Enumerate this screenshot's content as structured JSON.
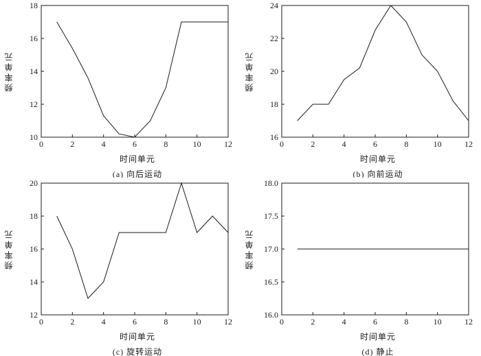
{
  "page": {
    "background": "#ffffff",
    "line_color": "#1a1a1a"
  },
  "chart_data": [
    {
      "id": "a",
      "type": "line",
      "title": "",
      "caption": "(a) 向后运动",
      "xlabel": "时间单元",
      "ylabel": "频率单元",
      "legend": "none",
      "grid": false,
      "xlim": [
        0,
        12
      ],
      "ylim": [
        10,
        18
      ],
      "xticks": [
        0,
        2,
        4,
        6,
        8,
        10,
        12
      ],
      "xtick_labels": [
        "0",
        "2",
        "4",
        "6",
        "8",
        "10",
        "12"
      ],
      "yticks": [
        10,
        12,
        14,
        16,
        18
      ],
      "ytick_labels": [
        "10",
        "12",
        "14",
        "16",
        "18"
      ],
      "x": [
        1,
        2,
        3,
        4,
        5,
        6,
        7,
        8,
        9,
        10,
        11,
        12
      ],
      "y": [
        17,
        15.4,
        13.6,
        11.3,
        10.2,
        10,
        11,
        13,
        17,
        17,
        17,
        17
      ]
    },
    {
      "id": "b",
      "type": "line",
      "title": "",
      "caption": "(b) 向前运动",
      "xlabel": "时间单元",
      "ylabel": "频率单元",
      "legend": "none",
      "grid": false,
      "xlim": [
        0,
        12
      ],
      "ylim": [
        16,
        24
      ],
      "xticks": [
        0,
        2,
        4,
        6,
        8,
        10,
        12
      ],
      "xtick_labels": [
        "0",
        "2",
        "4",
        "6",
        "8",
        "10",
        "12"
      ],
      "yticks": [
        16,
        18,
        20,
        22,
        24
      ],
      "ytick_labels": [
        "16",
        "18",
        "20",
        "22",
        "24"
      ],
      "x": [
        1,
        2,
        3,
        4,
        5,
        6,
        7,
        8,
        9,
        10,
        11,
        12
      ],
      "y": [
        17,
        18,
        18,
        19.5,
        20.2,
        22.5,
        24,
        23,
        21,
        20,
        18.2,
        17
      ]
    },
    {
      "id": "c",
      "type": "line",
      "title": "",
      "caption": "(c) 旋转运动",
      "xlabel": "时间单元",
      "ylabel": "频率单元",
      "legend": "none",
      "grid": false,
      "xlim": [
        0,
        12
      ],
      "ylim": [
        12,
        20
      ],
      "xticks": [
        0,
        2,
        4,
        6,
        8,
        10,
        12
      ],
      "xtick_labels": [
        "0",
        "2",
        "4",
        "6",
        "8",
        "10",
        "12"
      ],
      "yticks": [
        12,
        14,
        16,
        18,
        20
      ],
      "ytick_labels": [
        "12",
        "14",
        "16",
        "18",
        "20"
      ],
      "x": [
        1,
        2,
        3,
        4,
        5,
        6,
        7,
        8,
        9,
        10,
        11,
        12
      ],
      "y": [
        18,
        16,
        13,
        14,
        17,
        17,
        17,
        17,
        20,
        17,
        18,
        17
      ]
    },
    {
      "id": "d",
      "type": "line",
      "title": "",
      "caption": "(d) 静止",
      "xlabel": "时间单元",
      "ylabel": "频率单元",
      "legend": "none",
      "grid": false,
      "xlim": [
        0,
        12
      ],
      "ylim": [
        16,
        18
      ],
      "xticks": [
        0,
        2,
        4,
        6,
        8,
        10,
        12
      ],
      "xtick_labels": [
        "0",
        "2",
        "4",
        "6",
        "8",
        "10",
        "12"
      ],
      "yticks": [
        16,
        16.5,
        17,
        17.5,
        18
      ],
      "ytick_labels": [
        "16.0",
        "16.5",
        "17.0",
        "17.5",
        "18.0"
      ],
      "x": [
        1,
        2,
        3,
        4,
        5,
        6,
        7,
        8,
        9,
        10,
        11,
        12
      ],
      "y": [
        17,
        17,
        17,
        17,
        17,
        17,
        17,
        17,
        17,
        17,
        17,
        17
      ]
    }
  ]
}
